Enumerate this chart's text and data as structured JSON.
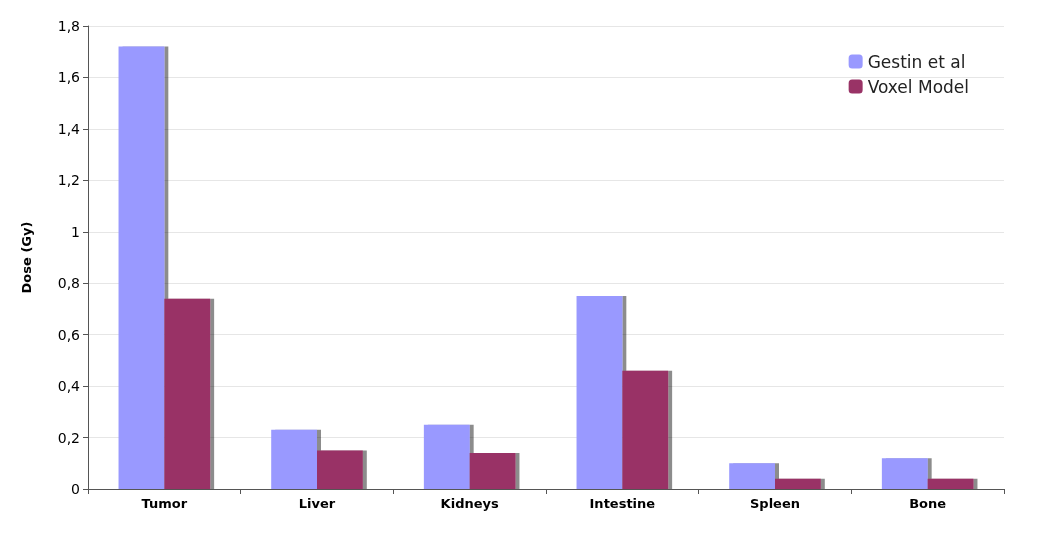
{
  "chart_data": {
    "type": "bar",
    "ylabel": "Dose (Gy)",
    "categories": [
      "Tumor",
      "Liver",
      "Kidneys",
      "Intestine",
      "Spleen",
      "Bone"
    ],
    "series": [
      {
        "name": "Gestin et al",
        "color": "#9999ff",
        "values": [
          1.72,
          0.23,
          0.25,
          0.75,
          0.1,
          0.12
        ]
      },
      {
        "name": "Voxel Model",
        "color": "#993366",
        "values": [
          0.74,
          0.15,
          0.14,
          0.46,
          0.04,
          0.04
        ]
      }
    ],
    "ylim": [
      0,
      1.8
    ],
    "yticks": [
      0,
      {
        "value": 0.2,
        "label": "0,2"
      },
      {
        "value": 0.4,
        "label": "0,4"
      },
      {
        "value": 0.6,
        "label": "0,6"
      },
      {
        "value": 0.8,
        "label": "0,8"
      },
      1,
      {
        "value": 1.2,
        "label": "1,2"
      },
      {
        "value": 1.4,
        "label": "1,4"
      },
      {
        "value": 1.6,
        "label": "1,6"
      },
      {
        "value": 1.8,
        "label": "1,8"
      }
    ],
    "grid": "y",
    "legend": "top right"
  }
}
